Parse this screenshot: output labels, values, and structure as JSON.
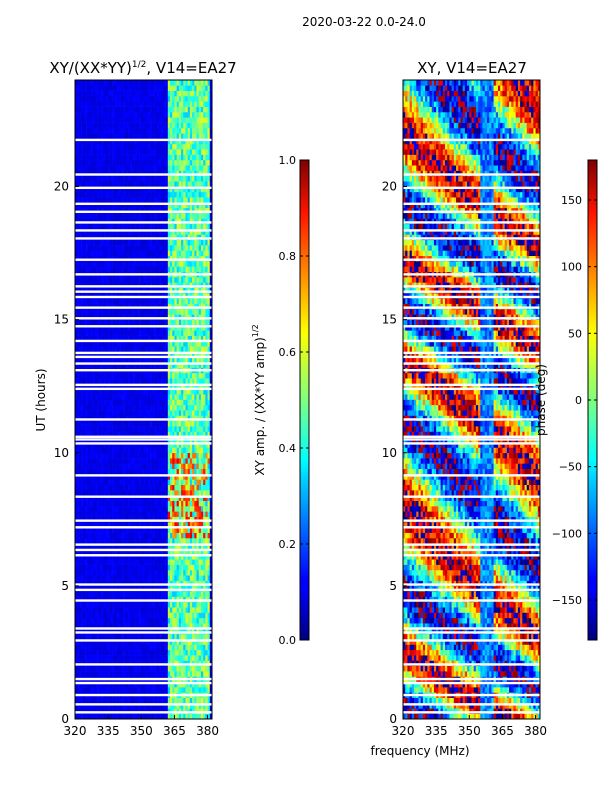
{
  "suptitle": "2020-03-22 0.0-24.0",
  "xlabel": "frequency (MHz)",
  "chart_data": [
    {
      "type": "heatmap",
      "title": "XY/(XX*YY)",
      "title_exponent": "1/2",
      "title_suffix": ", V14=EA27",
      "xlabel": "",
      "ylabel": "UT (hours)",
      "xlim": [
        320,
        382
      ],
      "ylim": [
        0,
        24
      ],
      "xticks": [
        320,
        335,
        350,
        365,
        380
      ],
      "yticks": [
        0,
        5,
        10,
        15,
        20
      ],
      "colormap": "jet",
      "colorbar": {
        "label": "XY amp. / (XX*YY amp)",
        "label_exponent": "1/2",
        "range": [
          0.0,
          1.0
        ],
        "ticks": [
          "0.0",
          "0.2",
          "0.4",
          "0.6",
          "0.8",
          "1.0"
        ]
      },
      "flagged_hours": [
        0.25,
        0.55,
        0.9,
        1.35,
        1.5,
        2.05,
        2.95,
        3.25,
        3.4,
        4.45,
        4.85,
        5.05,
        6.15,
        6.35,
        6.55,
        7.2,
        7.45,
        8.35,
        9.15,
        10.35,
        10.5,
        10.6,
        11.25,
        12.4,
        12.55,
        13.1,
        13.35,
        13.6,
        13.75,
        14.2,
        14.75,
        15.05,
        15.45,
        15.85,
        16.05,
        16.25,
        16.7,
        17.25,
        18.05,
        18.35,
        18.65,
        19.05,
        19.35,
        19.95,
        20.45,
        21.75
      ]
    },
    {
      "type": "heatmap",
      "title": "XY, V14=EA27",
      "xlabel": "",
      "ylabel": "",
      "xlim": [
        320,
        382
      ],
      "ylim": [
        0,
        24
      ],
      "xticks": [
        320,
        335,
        350,
        365,
        380
      ],
      "yticks": [
        0,
        5,
        10,
        15,
        20
      ],
      "colormap": "jet",
      "colorbar": {
        "label": "phase (deg)",
        "range": [
          -180,
          180
        ],
        "ticks": [
          "−150",
          "−100",
          "−50",
          "0",
          "50",
          "100",
          "150"
        ]
      },
      "flagged_hours": [
        0.25,
        0.55,
        0.9,
        1.35,
        1.5,
        2.05,
        2.95,
        3.25,
        3.4,
        4.45,
        4.85,
        5.05,
        6.15,
        6.35,
        6.55,
        7.2,
        7.45,
        8.35,
        9.15,
        10.35,
        10.5,
        10.6,
        11.25,
        12.4,
        12.55,
        13.1,
        13.35,
        13.6,
        13.75,
        14.2,
        14.75,
        15.05,
        15.45,
        15.85,
        16.05,
        16.25,
        16.7,
        17.25,
        18.05,
        18.35,
        18.65,
        19.05,
        19.35,
        19.95,
        20.45,
        21.75
      ]
    }
  ]
}
